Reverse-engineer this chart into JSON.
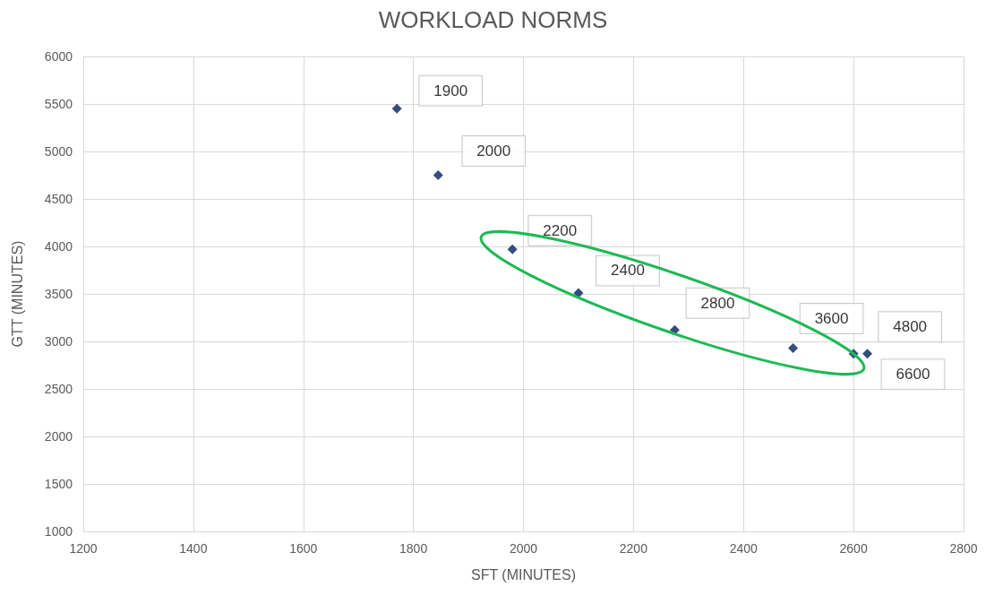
{
  "chart_data": {
    "type": "scatter",
    "title": "WORKLOAD NORMS",
    "xlabel": "SFT (MINUTES)",
    "ylabel": "GTT (MINUTES)",
    "series": [
      {
        "color": "#002060",
        "x": [
          1770,
          1845,
          1980,
          2100,
          2275,
          2490,
          2600,
          2625
        ],
        "values": [
          5450,
          4750,
          3970,
          3510,
          3120,
          2930,
          2870,
          2870
        ]
      }
    ],
    "annotations": [
      {
        "text": "1900",
        "x": 1770,
        "y": 5450
      },
      {
        "text": "2000",
        "x": 1845,
        "y": 4750
      },
      {
        "text": "2200",
        "x": 1980,
        "y": 3970
      },
      {
        "text": "2400",
        "x": 2100,
        "y": 3510
      },
      {
        "text": "2800",
        "x": 2275,
        "y": 3120
      },
      {
        "text": "3600",
        "x": 2490,
        "y": 2930
      },
      {
        "text": "4800",
        "x": 2600,
        "y": 2870
      },
      {
        "text": "6600",
        "x": 2625,
        "y": 2870
      }
    ],
    "xlim": [
      1200,
      2800
    ],
    "xticks": [
      1200,
      1400,
      1600,
      1800,
      2000,
      2200,
      2400,
      2600,
      2800
    ],
    "ylim": [
      1000,
      6000
    ],
    "yticks": [
      1000,
      1500,
      2000,
      2500,
      3000,
      3500,
      4000,
      4500,
      5000,
      5500,
      6000
    ],
    "grid": true,
    "marker": "diamond"
  }
}
